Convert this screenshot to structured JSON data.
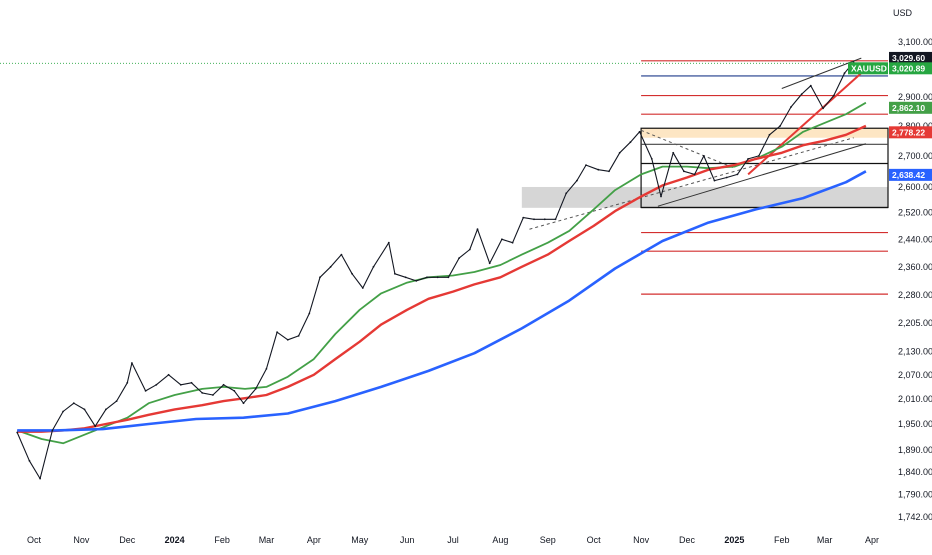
{
  "chart_data": {
    "type": "line",
    "symbol": "XAUUSD",
    "currency": "USD",
    "x_ticks": [
      "Oct",
      "Nov",
      "Dec",
      "2024",
      "Feb",
      "Mar",
      "Apr",
      "May",
      "Jun",
      "Jul",
      "Aug",
      "Sep",
      "Oct",
      "Nov",
      "Dec",
      "2025",
      "Feb",
      "Mar",
      "Apr"
    ],
    "x_tick_dates": [
      "2023-10-01",
      "2023-11-01",
      "2023-12-01",
      "2024-01-01",
      "2024-02-01",
      "2024-03-01",
      "2024-04-01",
      "2024-05-01",
      "2024-06-01",
      "2024-07-01",
      "2024-08-01",
      "2024-09-01",
      "2024-10-01",
      "2024-11-01",
      "2024-12-01",
      "2025-01-01",
      "2025-02-01",
      "2025-03-01",
      "2025-04-01"
    ],
    "y_ticks": [
      3100,
      2900,
      2800,
      2700,
      2600,
      2520,
      2440,
      2360,
      2280,
      2205,
      2130,
      2070,
      2010,
      1950,
      1890,
      1840,
      1790,
      1742
    ],
    "y_tick_labels": [
      "3,100.00",
      "2,900.00",
      "2,800.00",
      "2,700.00",
      "2,600.00",
      "2,520.00",
      "2,440.00",
      "2,360.00",
      "2,280.00",
      "2,205.00",
      "2,130.00",
      "2,070.00",
      "2,010.00",
      "1,950.00",
      "1,890.00",
      "1,840.00",
      "1,790.00",
      "1,742.00"
    ],
    "y_scale": "log",
    "ylim": [
      1725,
      3160
    ],
    "grid": false,
    "price_badges": [
      {
        "label": "3,029.60",
        "value": 3029.6,
        "color": "#131722"
      },
      {
        "label": "3,020.89",
        "value": 3020.89,
        "color": "#26a641",
        "with_symbol": true
      },
      {
        "label": "2,862.10",
        "value": 2862.1,
        "color": "#43a047"
      },
      {
        "label": "2,778.22",
        "value": 2778.22,
        "color": "#e53935"
      },
      {
        "label": "2,638.42",
        "value": 2638.42,
        "color": "#2962ff"
      }
    ],
    "price_series": {
      "name": "XAUUSD",
      "dates": [
        "2023-09-20",
        "2023-09-28",
        "2023-10-05",
        "2023-10-13",
        "2023-10-20",
        "2023-10-27",
        "2023-11-03",
        "2023-11-10",
        "2023-11-17",
        "2023-11-24",
        "2023-12-01",
        "2023-12-04",
        "2023-12-13",
        "2023-12-20",
        "2023-12-28",
        "2024-01-05",
        "2024-01-12",
        "2024-01-19",
        "2024-01-26",
        "2024-02-02",
        "2024-02-09",
        "2024-02-15",
        "2024-02-23",
        "2024-03-01",
        "2024-03-08",
        "2024-03-15",
        "2024-03-22",
        "2024-03-29",
        "2024-04-05",
        "2024-04-12",
        "2024-04-19",
        "2024-04-26",
        "2024-05-03",
        "2024-05-10",
        "2024-05-20",
        "2024-05-24",
        "2024-05-31",
        "2024-06-07",
        "2024-06-14",
        "2024-06-21",
        "2024-06-28",
        "2024-07-05",
        "2024-07-12",
        "2024-07-17",
        "2024-07-25",
        "2024-08-02",
        "2024-08-09",
        "2024-08-16",
        "2024-08-23",
        "2024-08-30",
        "2024-09-06",
        "2024-09-13",
        "2024-09-20",
        "2024-09-26",
        "2024-10-04",
        "2024-10-11",
        "2024-10-18",
        "2024-10-25",
        "2024-10-31",
        "2024-11-08",
        "2024-11-14",
        "2024-11-22",
        "2024-11-29",
        "2024-12-06",
        "2024-12-12",
        "2024-12-19",
        "2024-12-27",
        "2025-01-03",
        "2025-01-10",
        "2025-01-17",
        "2025-01-24",
        "2025-01-31",
        "2025-02-07",
        "2025-02-14",
        "2025-02-20",
        "2025-02-28",
        "2025-03-07",
        "2025-03-14",
        "2025-03-20"
      ],
      "values": [
        1930,
        1865,
        1825,
        1935,
        1980,
        2000,
        1985,
        1945,
        1985,
        2005,
        2050,
        2100,
        2030,
        2045,
        2070,
        2045,
        2050,
        2025,
        2020,
        2045,
        2030,
        2000,
        2035,
        2085,
        2180,
        2160,
        2170,
        2230,
        2330,
        2360,
        2395,
        2340,
        2300,
        2360,
        2430,
        2340,
        2330,
        2320,
        2330,
        2330,
        2330,
        2385,
        2410,
        2470,
        2370,
        2440,
        2430,
        2505,
        2500,
        2500,
        2500,
        2580,
        2620,
        2670,
        2655,
        2650,
        2710,
        2745,
        2780,
        2690,
        2570,
        2710,
        2650,
        2640,
        2700,
        2620,
        2630,
        2640,
        2690,
        2700,
        2770,
        2800,
        2865,
        2910,
        2940,
        2860,
        2905,
        2985,
        3025
      ]
    },
    "moving_averages": [
      {
        "color": "#43a047",
        "dates": [
          "2023-09-20",
          "2023-10-06",
          "2023-10-20",
          "2023-11-03",
          "2023-11-17",
          "2023-12-01",
          "2023-12-15",
          "2024-01-01",
          "2024-01-19",
          "2024-02-02",
          "2024-02-16",
          "2024-03-01",
          "2024-03-15",
          "2024-04-01",
          "2024-04-15",
          "2024-05-01",
          "2024-05-15",
          "2024-06-01",
          "2024-06-15",
          "2024-07-01",
          "2024-07-15",
          "2024-08-01",
          "2024-08-15",
          "2024-09-01",
          "2024-09-15",
          "2024-10-01",
          "2024-10-15",
          "2024-11-01",
          "2024-11-15",
          "2024-12-01",
          "2024-12-15",
          "2025-01-01",
          "2025-01-15",
          "2025-02-01",
          "2025-02-15",
          "2025-03-01",
          "2025-03-15",
          "2025-03-28"
        ],
        "values": [
          1935,
          1915,
          1905,
          1925,
          1945,
          1965,
          2000,
          2020,
          2035,
          2040,
          2035,
          2040,
          2065,
          2110,
          2175,
          2240,
          2285,
          2315,
          2330,
          2335,
          2345,
          2365,
          2395,
          2430,
          2465,
          2530,
          2590,
          2640,
          2665,
          2665,
          2660,
          2665,
          2690,
          2730,
          2780,
          2810,
          2840,
          2880
        ]
      },
      {
        "color": "#e53935",
        "dates": [
          "2023-09-20",
          "2023-10-06",
          "2023-10-20",
          "2023-11-03",
          "2023-11-17",
          "2023-12-01",
          "2023-12-15",
          "2024-01-01",
          "2024-01-19",
          "2024-02-02",
          "2024-02-16",
          "2024-03-01",
          "2024-03-15",
          "2024-04-01",
          "2024-04-15",
          "2024-05-01",
          "2024-05-15",
          "2024-06-01",
          "2024-06-15",
          "2024-07-01",
          "2024-07-15",
          "2024-08-01",
          "2024-08-15",
          "2024-09-01",
          "2024-09-15",
          "2024-10-01",
          "2024-10-15",
          "2024-11-01",
          "2024-11-15",
          "2024-12-01",
          "2024-12-15",
          "2025-01-01",
          "2025-01-15",
          "2025-02-01",
          "2025-02-15",
          "2025-03-01",
          "2025-03-15",
          "2025-03-28"
        ],
        "values": [
          1932,
          1932,
          1935,
          1940,
          1950,
          1960,
          1972,
          1985,
          1995,
          2005,
          2012,
          2020,
          2040,
          2070,
          2110,
          2155,
          2200,
          2240,
          2270,
          2290,
          2310,
          2330,
          2360,
          2395,
          2435,
          2480,
          2525,
          2570,
          2605,
          2630,
          2655,
          2670,
          2690,
          2710,
          2735,
          2750,
          2770,
          2800
        ]
      },
      {
        "color": "#2962ff",
        "dates": [
          "2023-09-20",
          "2023-10-15",
          "2023-11-15",
          "2023-12-15",
          "2024-01-15",
          "2024-02-15",
          "2024-03-15",
          "2024-04-15",
          "2024-05-15",
          "2024-06-15",
          "2024-07-15",
          "2024-08-15",
          "2024-09-15",
          "2024-10-15",
          "2024-11-15",
          "2024-12-15",
          "2025-01-15",
          "2025-02-15",
          "2025-03-15",
          "2025-03-28"
        ],
        "values": [
          1935,
          1935,
          1938,
          1950,
          1962,
          1965,
          1975,
          2005,
          2040,
          2080,
          2125,
          2190,
          2265,
          2355,
          2435,
          2490,
          2530,
          2565,
          2615,
          2650
        ]
      }
    ],
    "horizontal_lines": [
      {
        "value": 3030,
        "color": "#d32f2f"
      },
      {
        "value": 2975,
        "color": "#1e3a8a"
      },
      {
        "value": 2905,
        "color": "#d32f2f"
      },
      {
        "value": 2840,
        "color": "#d32f2f"
      },
      {
        "value": 2738,
        "color": "#444444"
      },
      {
        "value": 2675,
        "color": "#111111"
      },
      {
        "value": 2536,
        "color": "#111111"
      },
      {
        "value": 2460,
        "color": "#d32f2f"
      },
      {
        "value": 2405,
        "color": "#d32f2f"
      },
      {
        "value": 2283,
        "color": "#d32f2f"
      }
    ]
  }
}
